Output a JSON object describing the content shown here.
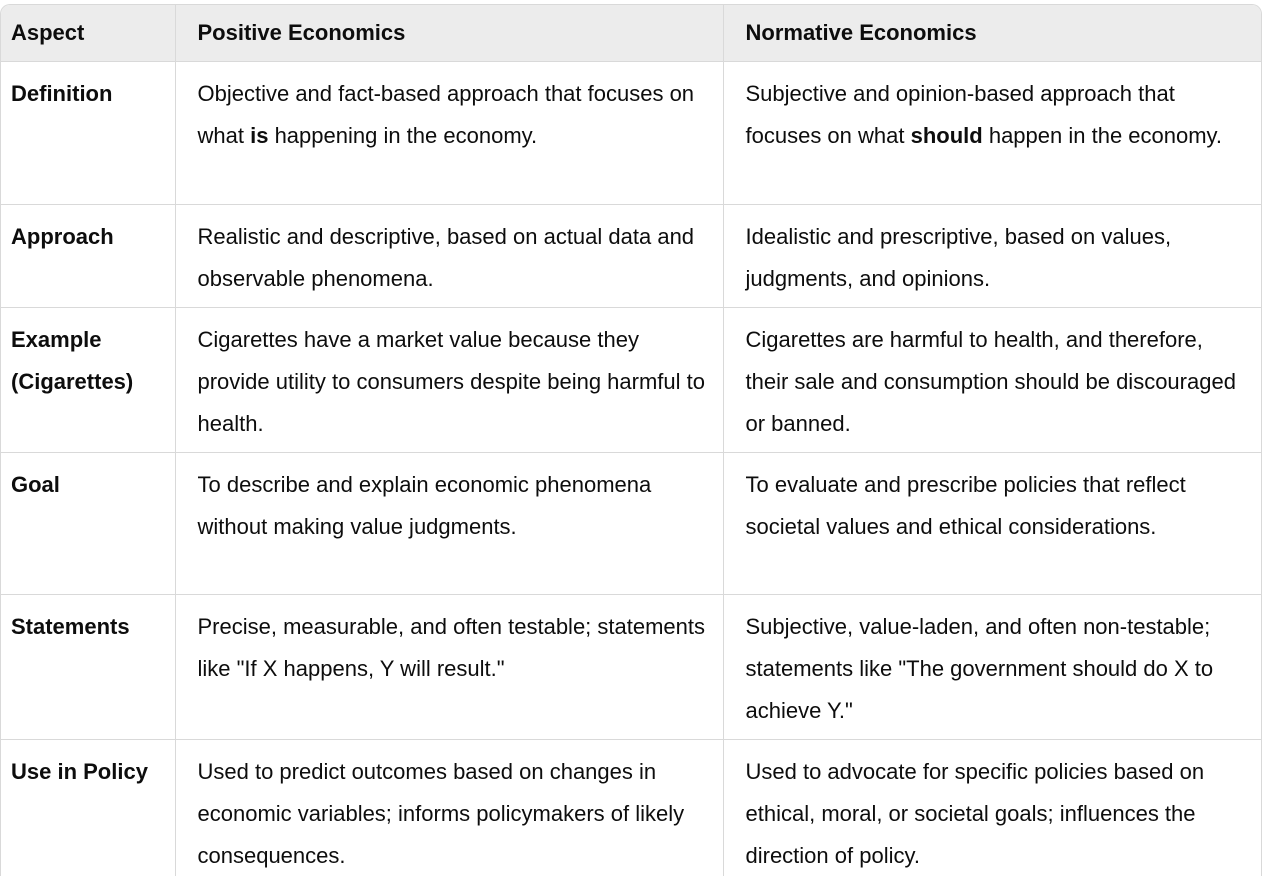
{
  "table": {
    "headers": [
      "Aspect",
      "Positive Economics",
      "Normative Economics"
    ],
    "rows": [
      {
        "aspect": "Definition",
        "positive": {
          "pre": "Objective and fact-based approach that focuses on what ",
          "bold": "is",
          "post": " happening in the economy."
        },
        "normative": {
          "pre": "Subjective and opinion-based approach that focuses on what ",
          "bold": "should",
          "post": " happen in the economy."
        }
      },
      {
        "aspect": "Approach",
        "positive": "Realistic and descriptive, based on actual data and observable phenomena.",
        "normative": "Idealistic and prescriptive, based on values, judgments, and opinions."
      },
      {
        "aspect": "Example (Cigarettes)",
        "positive": "Cigarettes have a market value because they provide utility to consumers despite being harmful to health.",
        "normative": "Cigarettes are harmful to health, and therefore, their sale and consumption should be discouraged or banned."
      },
      {
        "aspect": "Goal",
        "positive": "To describe and explain economic phenomena without making value judgments.",
        "normative": "To evaluate and prescribe policies that reflect societal values and ethical considerations."
      },
      {
        "aspect": "Statements",
        "positive": "Precise, measurable, and often testable; statements like \"If X happens, Y will result.\"",
        "normative": "Subjective, value-laden, and often non-testable; statements like \"The government should do X to achieve Y.\""
      },
      {
        "aspect": "Use in Policy",
        "positive": "Used to predict outcomes based on changes in economic variables; informs policymakers of likely consequences.",
        "normative": "Used to advocate for specific policies based on ethical, moral, or societal goals; influences the direction of policy."
      }
    ]
  }
}
